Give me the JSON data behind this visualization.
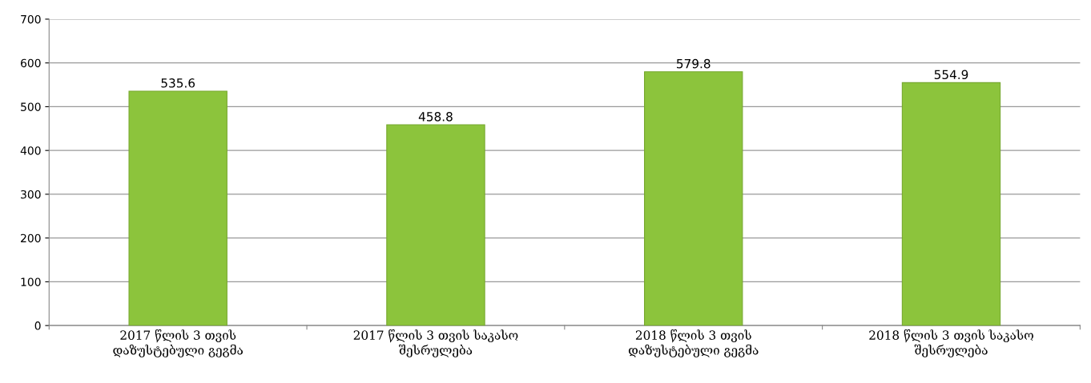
{
  "chart_data": {
    "type": "bar",
    "categories": [
      "2017 წლის 3 თვის\nდაზუსტებული გეგმა",
      "2017 წლის 3 თვის საკასო\nშესრულება",
      "2018 წლის 3 თვის\nდაზუსტებული გეგმა",
      "2018 წლის 3 თვის საკასო\nშესრულება"
    ],
    "values": [
      535.6,
      458.8,
      579.8,
      554.9
    ],
    "color": "#8cc43c",
    "ylim": [
      0,
      700
    ],
    "yticks": [
      0,
      100,
      200,
      300,
      400,
      500,
      600,
      700
    ],
    "grid": "y",
    "data_labels": true
  }
}
